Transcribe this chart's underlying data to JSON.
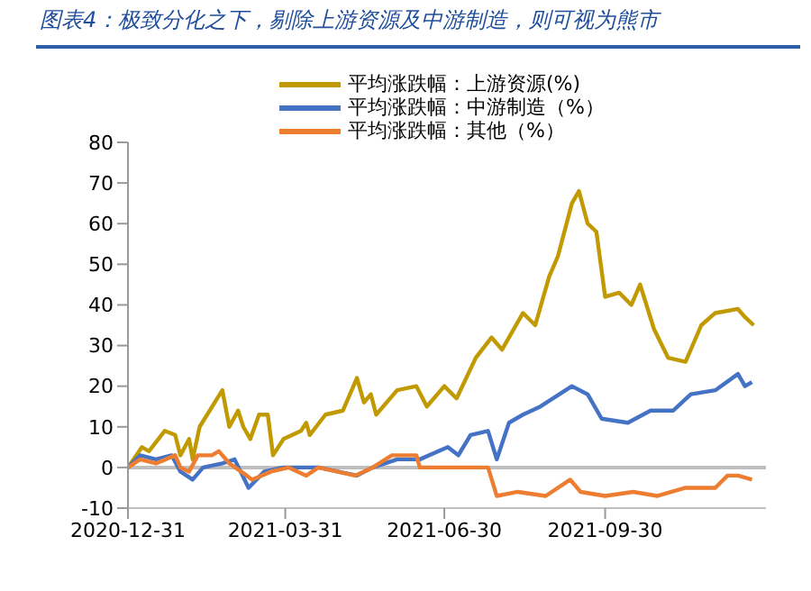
{
  "chart_data": {
    "type": "line",
    "title": "图表4：极致分化之下，剔除上游资源及中游制造，则可视为熊市",
    "xlim": [
      "2020-12-31",
      "2021-12-31"
    ],
    "xticks": [
      "2020-12-31",
      "2021-03-31",
      "2021-06-30",
      "2021-09-30"
    ],
    "ylim": [
      -10,
      80
    ],
    "yticks": [
      -10,
      0,
      10,
      20,
      30,
      40,
      50,
      60,
      70,
      80
    ],
    "grid": false,
    "legend": "top",
    "marker": "none",
    "line_style": "solid",
    "ref_lines": [
      {
        "axis": "y",
        "value": 0,
        "color": "#bfbfbf"
      }
    ],
    "series": [
      {
        "name": "平均涨跌幅：上游资源(%)",
        "color": "#c09a00",
        "x": [
          "2020-12-31",
          "2021-01-08",
          "2021-01-12",
          "2021-01-21",
          "2021-01-27",
          "2021-01-30",
          "2021-02-04",
          "2021-02-06",
          "2021-02-10",
          "2021-02-23",
          "2021-02-27",
          "2021-03-04",
          "2021-03-07",
          "2021-03-11",
          "2021-03-16",
          "2021-03-21",
          "2021-03-24",
          "2021-03-30",
          "2021-04-09",
          "2021-04-12",
          "2021-04-14",
          "2021-04-23",
          "2021-05-03",
          "2021-05-11",
          "2021-05-15",
          "2021-05-19",
          "2021-05-22",
          "2021-06-03",
          "2021-06-14",
          "2021-06-20",
          "2021-06-30",
          "2021-07-07",
          "2021-07-18",
          "2021-07-27",
          "2021-08-02",
          "2021-08-14",
          "2021-08-21",
          "2021-08-29",
          "2021-09-03",
          "2021-09-11",
          "2021-09-15",
          "2021-09-20",
          "2021-09-25",
          "2021-09-30",
          "2021-10-08",
          "2021-10-15",
          "2021-10-20",
          "2021-10-28",
          "2021-11-05",
          "2021-11-15",
          "2021-11-24",
          "2021-12-02",
          "2021-12-15",
          "2021-12-19",
          "2021-12-24"
        ],
        "values": [
          0,
          5,
          4,
          9,
          8,
          3,
          7,
          2,
          10,
          19,
          10,
          14,
          10,
          7,
          13,
          13,
          3,
          7,
          9,
          11,
          8,
          13,
          14,
          22,
          16,
          18,
          13,
          19,
          20,
          15,
          20,
          17,
          27,
          32,
          29,
          38,
          35,
          47,
          52,
          65,
          68,
          60,
          58,
          42,
          43,
          40,
          45,
          34,
          27,
          26,
          35,
          38,
          39,
          37,
          35
        ]
      },
      {
        "name": "平均涨跌幅：中游制造（%）",
        "color": "#4472c4",
        "x": [
          "2020-12-31",
          "2021-01-07",
          "2021-01-16",
          "2021-01-25",
          "2021-01-30",
          "2021-02-06",
          "2021-02-12",
          "2021-02-23",
          "2021-03-02",
          "2021-03-10",
          "2021-03-19",
          "2021-03-30",
          "2021-04-09",
          "2021-04-19",
          "2021-04-30",
          "2021-05-11",
          "2021-05-20",
          "2021-06-03",
          "2021-06-16",
          "2021-07-02",
          "2021-07-08",
          "2021-07-15",
          "2021-07-25",
          "2021-07-30",
          "2021-08-06",
          "2021-08-14",
          "2021-08-24",
          "2021-09-11",
          "2021-09-20",
          "2021-09-28",
          "2021-10-13",
          "2021-10-26",
          "2021-11-08",
          "2021-11-18",
          "2021-12-02",
          "2021-12-15",
          "2021-12-19",
          "2021-12-23"
        ],
        "values": [
          0,
          3,
          2,
          3,
          -1,
          -3,
          0,
          1,
          2,
          -5,
          -1,
          0,
          0,
          0,
          -1,
          -2,
          0,
          2,
          2,
          5,
          3,
          8,
          9,
          2,
          11,
          13,
          15,
          20,
          18,
          12,
          11,
          14,
          14,
          18,
          19,
          23,
          20,
          21
        ]
      },
      {
        "name": "平均涨跌幅：其他（%）",
        "color": "#ed7d31",
        "x": [
          "2020-12-31",
          "2021-01-07",
          "2021-01-16",
          "2021-01-27",
          "2021-01-30",
          "2021-02-04",
          "2021-02-09",
          "2021-02-17",
          "2021-02-21",
          "2021-02-27",
          "2021-03-09",
          "2021-03-12",
          "2021-03-23",
          "2021-04-02",
          "2021-04-12",
          "2021-04-19",
          "2021-05-10",
          "2021-05-20",
          "2021-05-31",
          "2021-06-14",
          "2021-06-16",
          "2021-07-05",
          "2021-07-17",
          "2021-07-25",
          "2021-07-30",
          "2021-08-11",
          "2021-08-27",
          "2021-09-10",
          "2021-09-16",
          "2021-09-30",
          "2021-10-16",
          "2021-10-30",
          "2021-11-15",
          "2021-12-02",
          "2021-12-09",
          "2021-12-15",
          "2021-12-23"
        ],
        "values": [
          0,
          2,
          1,
          3,
          0,
          -1,
          3,
          3,
          4,
          1,
          -2,
          -3,
          -1,
          0,
          -2,
          0,
          -2,
          0,
          3,
          3,
          0,
          0,
          0,
          0,
          -7,
          -6,
          -7,
          -3,
          -6,
          -7,
          -6,
          -7,
          -5,
          -5,
          -2,
          -2,
          -3
        ]
      }
    ]
  }
}
